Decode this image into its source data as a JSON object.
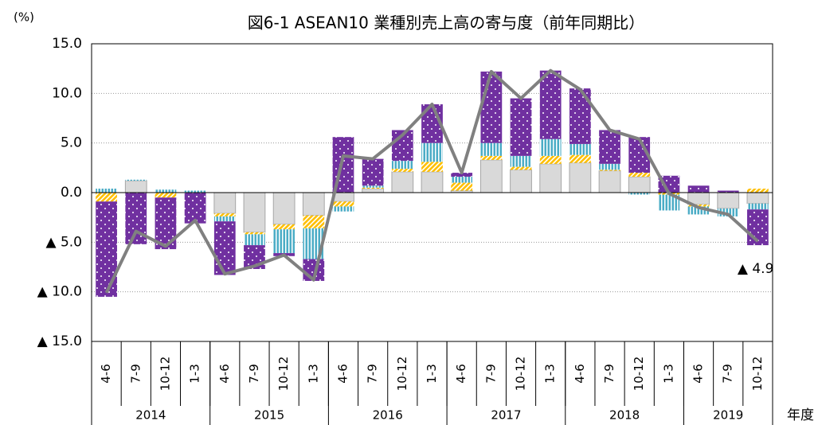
{
  "chart_data": {
    "type": "bar",
    "title": "図6-1 ASEAN10 業種別売上高の寄与度（前年同期比）",
    "y_unit": "(%)",
    "x_label": "年度",
    "annotation": "▲ 4.9",
    "stacked": true,
    "grid": true,
    "categories": [
      "4-6",
      "7-9",
      "10-12",
      "1-3",
      "4-6",
      "7-9",
      "10-12",
      "1-3",
      "4-6",
      "7-9",
      "10-12",
      "1-3",
      "4-6",
      "7-9",
      "10-12",
      "1-3",
      "4-6",
      "7-9",
      "10-12",
      "1-3",
      "4-6",
      "7-9",
      "10-12"
    ],
    "years": [
      {
        "label": "2014",
        "count": 4
      },
      {
        "label": "2015",
        "count": 4
      },
      {
        "label": "2016",
        "count": 4
      },
      {
        "label": "2017",
        "count": 4
      },
      {
        "label": "2018",
        "count": 4
      },
      {
        "label": "2019",
        "count": 3
      }
    ],
    "ylim": [
      -15,
      15
    ],
    "yticks": [
      {
        "value": -15,
        "label": "▲ 15.0"
      },
      {
        "value": -10,
        "label": "▲ 10.0"
      },
      {
        "value": -5,
        "label": "▲ 5.0"
      },
      {
        "value": 0,
        "label": "0.0"
      },
      {
        "value": 5,
        "label": "5.0"
      },
      {
        "value": 10,
        "label": "10.0"
      },
      {
        "value": 15,
        "label": "15.0"
      }
    ],
    "series": [
      {
        "color": "#d9d9d9",
        "pattern": "solid",
        "values": [
          0,
          1.2,
          0,
          0,
          -2.1,
          -4.0,
          -3.2,
          -2.3,
          -0.9,
          0.4,
          2.1,
          2.1,
          0.2,
          3.3,
          2.3,
          2.9,
          3.0,
          2.2,
          1.6,
          0,
          -1.2,
          -1.6,
          -1.1
        ]
      },
      {
        "color": "#ffc000",
        "pattern": "diagonal",
        "values": [
          -0.9,
          0,
          -0.5,
          0,
          -0.3,
          -0.2,
          -0.5,
          -1.3,
          -0.5,
          0.1,
          0.3,
          1.0,
          0.8,
          0.4,
          0.3,
          0.8,
          0.8,
          0.1,
          0.4,
          -0.2,
          -0.2,
          0,
          0.4
        ]
      },
      {
        "color": "#4bacc6",
        "pattern": "vertical",
        "values": [
          0.4,
          0.1,
          0.3,
          0.2,
          -0.5,
          -1.1,
          -2.4,
          -3.1,
          -0.5,
          0.2,
          0.8,
          1.9,
          0.6,
          1.3,
          1.1,
          1.7,
          1.1,
          0.6,
          -0.2,
          -1.6,
          -0.8,
          -0.8,
          -0.6
        ]
      },
      {
        "color": "#7030a0",
        "pattern": "dots",
        "values": [
          -9.6,
          -5.2,
          -5.2,
          -3.1,
          -5.4,
          -2.4,
          -0.3,
          -2.2,
          5.6,
          2.7,
          3.1,
          3.9,
          0.4,
          7.2,
          5.8,
          6.9,
          5.6,
          3.4,
          3.6,
          1.7,
          0.7,
          0.2,
          -3.6
        ]
      }
    ],
    "line": {
      "color": "#808080",
      "values": [
        -10.1,
        -3.9,
        -5.4,
        -2.8,
        -8.2,
        -7.4,
        -6.3,
        -8.8,
        3.7,
        3.4,
        5.8,
        8.9,
        2.0,
        12.2,
        9.5,
        12.3,
        10.4,
        6.3,
        5.4,
        -0.1,
        -1.5,
        -2.2,
        -4.9
      ]
    }
  }
}
